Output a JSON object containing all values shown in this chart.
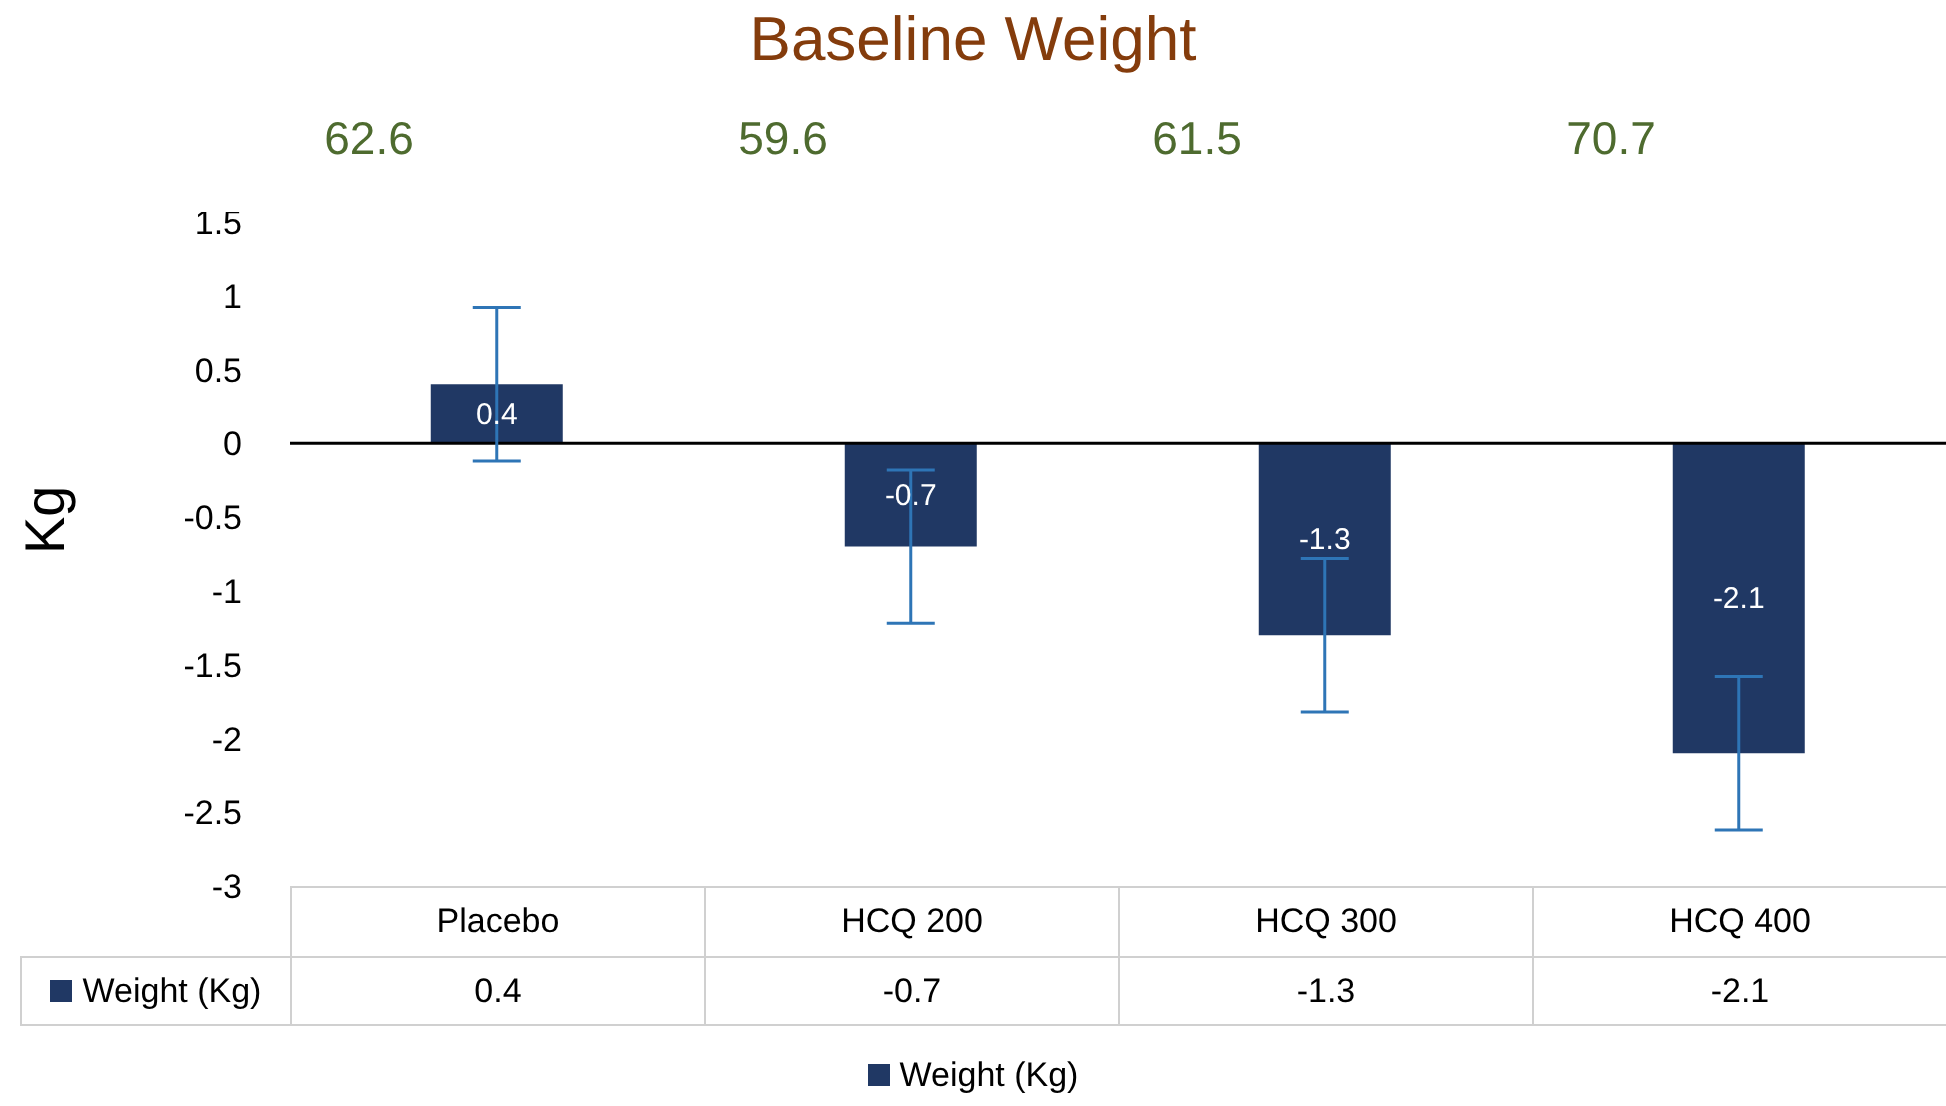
{
  "chart_data": {
    "type": "bar",
    "title": "Baseline Weight",
    "ylabel": "Kg",
    "categories": [
      "Placebo",
      "HCQ 200",
      "HCQ 300",
      "HCQ 400"
    ],
    "series": [
      {
        "name": "Weight (Kg)",
        "color": "#203864",
        "values": [
          0.4,
          -0.7,
          -1.3,
          -2.1
        ],
        "errors": [
          0.52,
          0.52,
          0.52,
          0.52
        ],
        "value_labels": [
          "0.4",
          "-0.7",
          "-1.3",
          "-2.1"
        ]
      }
    ],
    "annotations": [
      "62.6",
      "59.6",
      "61.5",
      "70.7"
    ],
    "ylim": [
      -3,
      1.5
    ],
    "yticks": [
      -3,
      -2.5,
      -2,
      -1.5,
      -1,
      -0.5,
      0,
      0.5,
      1,
      1.5
    ],
    "data_labels": true,
    "legend": "bottom"
  }
}
